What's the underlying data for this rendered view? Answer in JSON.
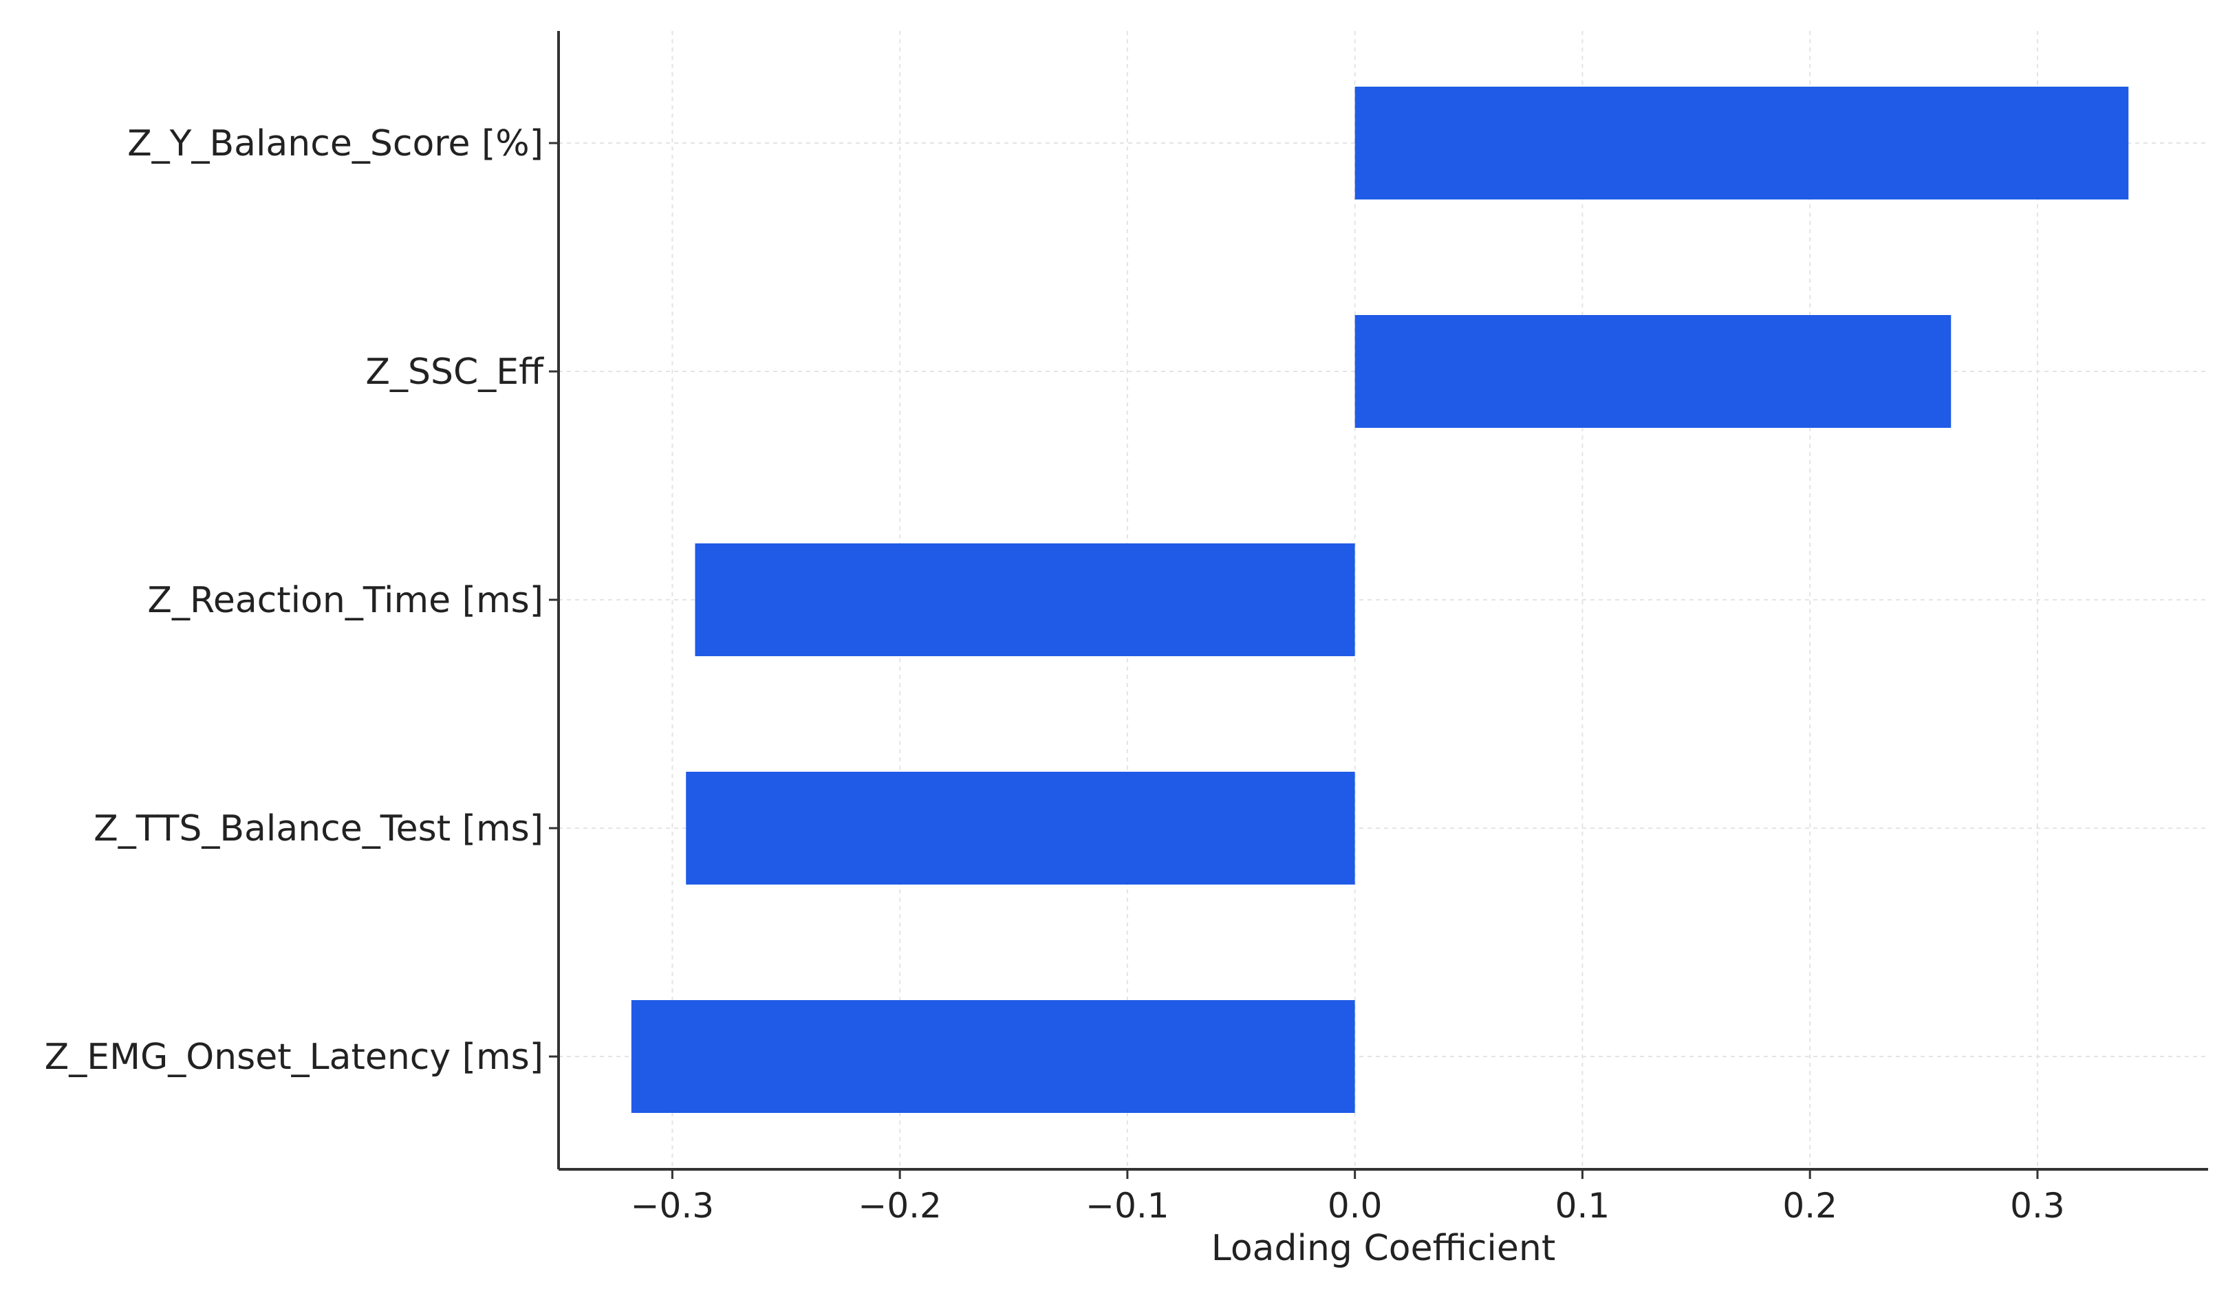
{
  "chart_data": {
    "type": "bar",
    "orientation": "horizontal",
    "categories": [
      "Z_Y_Balance_Score [%]",
      "Z_SSC_Eff",
      "Z_Reaction_Time [ms]",
      "Z_TTS_Balance_Test [ms]",
      "Z_EMG_Onset_Latency [ms]"
    ],
    "values": [
      0.34,
      0.262,
      -0.29,
      -0.294,
      -0.318
    ],
    "xlabel": "Loading Coefficient",
    "ylabel": "",
    "title": "",
    "xlim": [
      -0.35,
      0.375
    ],
    "xticks": [
      -0.3,
      -0.2,
      -0.1,
      0.0,
      0.1,
      0.2,
      0.3
    ],
    "xtick_labels": [
      "−0.3",
      "−0.2",
      "−0.1",
      "0.0",
      "0.1",
      "0.2",
      "0.3"
    ],
    "grid": true,
    "bar_color": "#1f5be6"
  }
}
